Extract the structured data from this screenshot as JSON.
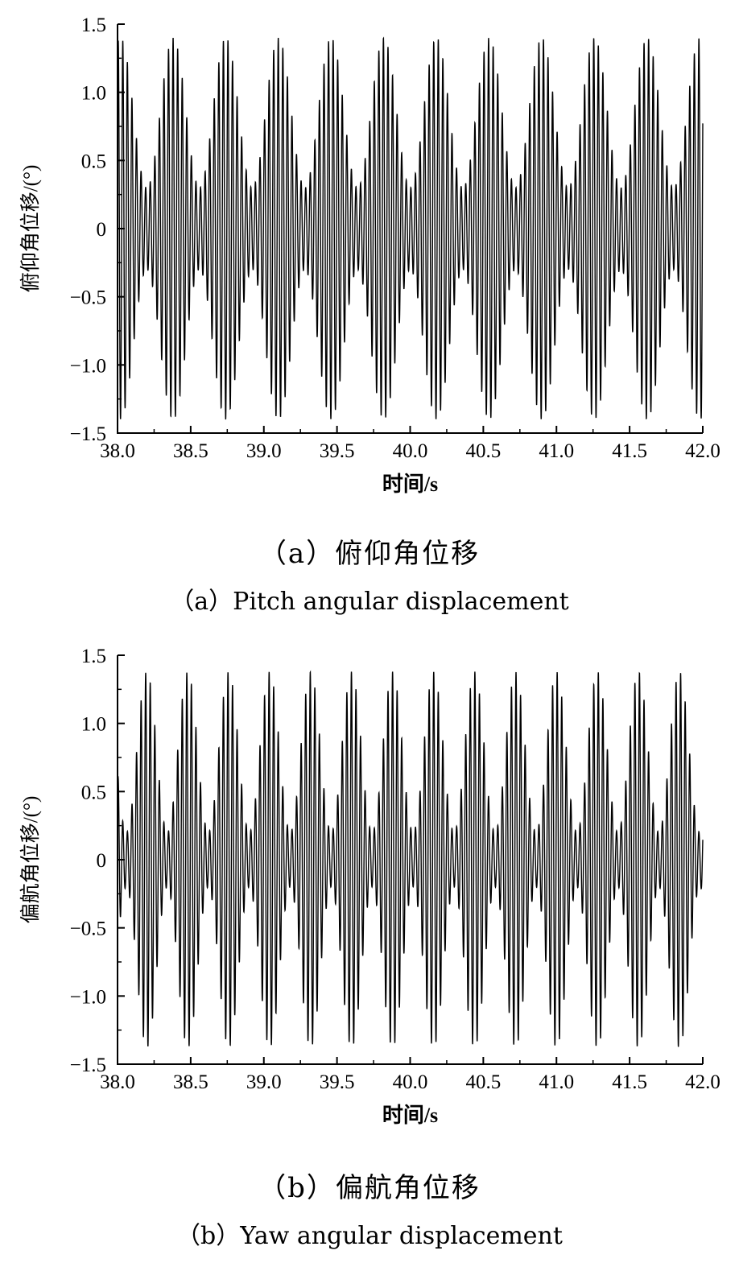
{
  "chart_data": [
    {
      "type": "line",
      "panel": "(a)",
      "xlabel": "时间/s",
      "ylabel": "俯仰角位移/(°)",
      "xlim": [
        38.0,
        42.0
      ],
      "ylim": [
        -1.5,
        1.5
      ],
      "xticks": [
        "38.0",
        "38.5",
        "39.0",
        "39.5",
        "40.0",
        "40.5",
        "41.0",
        "41.5",
        "42.0"
      ],
      "yticks": [
        "-1.5",
        "-1.0",
        "-0.5",
        "0",
        "0.5",
        "1.0",
        "1.5"
      ],
      "grid": false,
      "signal": {
        "description_points": "amplitude-modulated oscillation (beat pattern)",
        "carrier_frequency_hz": 32,
        "beat_period_s": 0.36,
        "first_peak_time_s": 38.02,
        "max_amplitude": 1.4,
        "min_amplitude": 0.3
      },
      "caption_cn": "（a）俯仰角位移",
      "caption_en": "（a）Pitch angular displacement"
    },
    {
      "type": "line",
      "panel": "(b)",
      "xlabel": "时间/s",
      "ylabel": "偏航角位移/(°)",
      "xlim": [
        38.0,
        42.0
      ],
      "ylim": [
        -1.5,
        1.5
      ],
      "xticks": [
        "38.0",
        "38.5",
        "39.0",
        "39.5",
        "40.0",
        "40.5",
        "41.0",
        "41.5",
        "42.0"
      ],
      "yticks": [
        "-1.5",
        "-1.0",
        "-0.5",
        "0",
        "0.5",
        "1.0",
        "1.5"
      ],
      "grid": false,
      "signal": {
        "description_points": "amplitude-modulated oscillation (beat pattern)",
        "carrier_frequency_hz": 32,
        "beat_period_s": 0.28,
        "first_peak_time_s": 38.2,
        "max_amplitude": 1.38,
        "min_amplitude": 0.2
      },
      "caption_cn": "（b）偏航角位移",
      "caption_en": "（b）Yaw angular displacement"
    }
  ]
}
